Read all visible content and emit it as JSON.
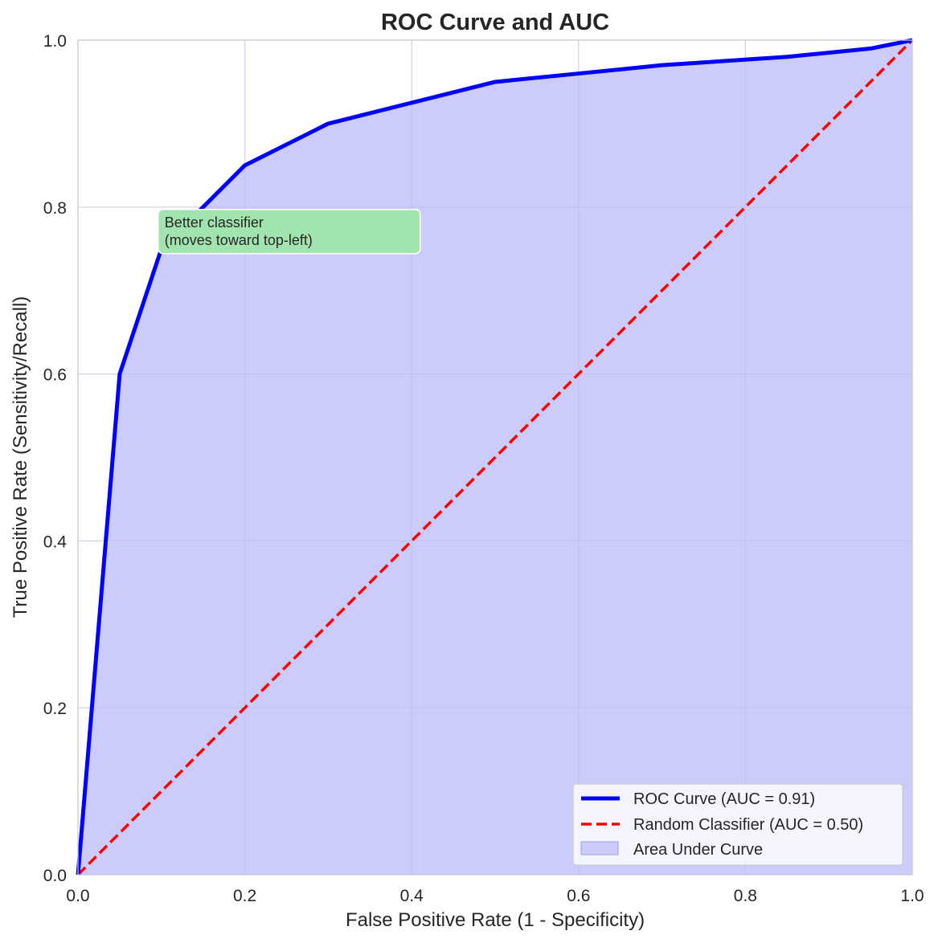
{
  "chart_data": {
    "type": "line",
    "title": "ROC Curve and AUC",
    "xlabel": "False Positive Rate (1 - Specificity)",
    "ylabel": "True Positive Rate (Sensitivity/Recall)",
    "xlim": [
      0,
      1
    ],
    "ylim": [
      0,
      1
    ],
    "xticks": [
      "0.0",
      "0.2",
      "0.4",
      "0.6",
      "0.8",
      "1.0"
    ],
    "yticks": [
      "0.0",
      "0.2",
      "0.4",
      "0.6",
      "0.8",
      "1.0"
    ],
    "grid": true,
    "legend_position": "bottom-right",
    "series": [
      {
        "name": "ROC Curve (AUC = 0.91)",
        "color": "#0000ff",
        "style": "solid",
        "fill": true,
        "fill_color": "#ccccfc",
        "x": [
          0.0,
          0.05,
          0.1,
          0.2,
          0.3,
          0.4,
          0.5,
          0.6,
          0.7,
          0.85,
          0.95,
          1.0
        ],
        "y": [
          0.0,
          0.6,
          0.75,
          0.85,
          0.9,
          0.925,
          0.95,
          0.96,
          0.97,
          0.98,
          0.99,
          1.0
        ]
      },
      {
        "name": "Random Classifier (AUC = 0.50)",
        "color": "#ff0000",
        "style": "dashed",
        "x": [
          0.0,
          1.0
        ],
        "y": [
          0.0,
          1.0
        ]
      }
    ],
    "area_legend_label": "Area Under Curve",
    "annotation": {
      "lines": [
        "Better classifier",
        "(moves toward top-left)"
      ],
      "x": 0.1,
      "y": 0.75,
      "bg_color": "#a2e4b0"
    }
  }
}
